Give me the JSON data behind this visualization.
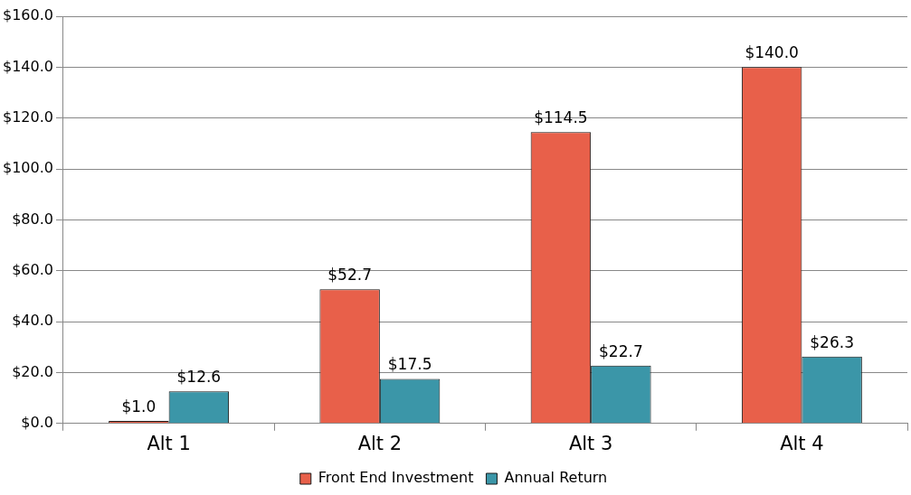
{
  "chart_data": {
    "type": "bar",
    "categories": [
      "Alt 1",
      "Alt 2",
      "Alt 3",
      "Alt 4"
    ],
    "series": [
      {
        "name": "Front End Investment",
        "color": "#e8604a",
        "values": [
          1.0,
          52.7,
          114.5,
          140.0
        ],
        "value_labels": [
          "$1.0",
          "$52.7",
          "$114.5",
          "$140.0"
        ]
      },
      {
        "name": "Annual Return",
        "color": "#3b96a8",
        "values": [
          12.6,
          17.5,
          22.7,
          26.3
        ],
        "value_labels": [
          "$12.6",
          "$17.5",
          "$22.7",
          "$26.3"
        ]
      }
    ],
    "ylim": [
      0,
      160
    ],
    "yticks": [
      {
        "value": 0,
        "label": "$0.0"
      },
      {
        "value": 20,
        "label": "$20.0"
      },
      {
        "value": 40,
        "label": "$40.0"
      },
      {
        "value": 60,
        "label": "$60.0"
      },
      {
        "value": 80,
        "label": "$80.0"
      },
      {
        "value": 100,
        "label": "$100.0"
      },
      {
        "value": 120,
        "label": "$120.0"
      },
      {
        "value": 140,
        "label": "$140.0"
      },
      {
        "value": 160,
        "label": "$160.0"
      }
    ],
    "grid": "y",
    "legend": "bottom"
  }
}
